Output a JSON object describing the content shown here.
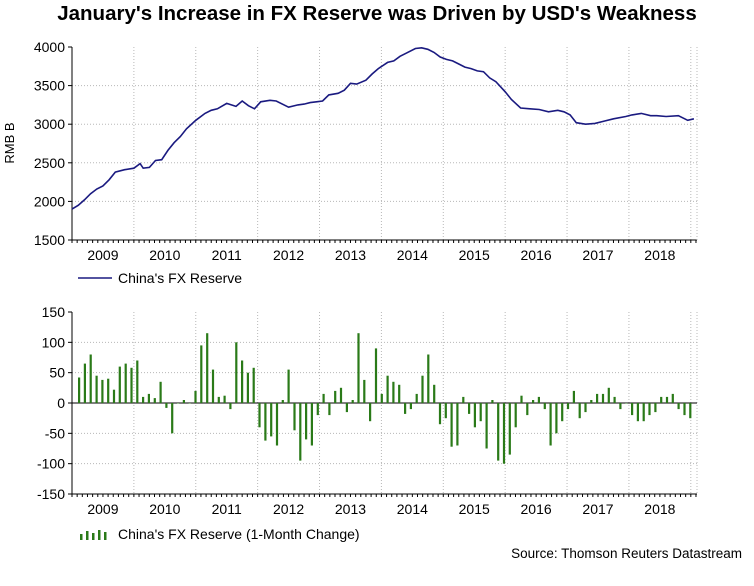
{
  "chart_data": [
    {
      "type": "line",
      "title": "January's Increase in FX Reserve was Driven by USD's Weakness",
      "ylabel": "RMB B",
      "ylim": [
        1500,
        4000
      ],
      "yticks": [
        1500,
        2000,
        2500,
        3000,
        3500,
        4000
      ],
      "xlim": [
        2008.5,
        2018.6
      ],
      "xtick_labels": [
        "2009",
        "2010",
        "2011",
        "2012",
        "2013",
        "2014",
        "2015",
        "2016",
        "2017",
        "2018"
      ],
      "grid": true,
      "legend": "China's FX Reserve",
      "color": "#1a1a80",
      "series": [
        {
          "name": "China's FX Reserve",
          "x": [
            2008.5,
            2008.6,
            2008.7,
            2008.8,
            2008.9,
            2009.0,
            2009.1,
            2009.2,
            2009.35,
            2009.5,
            2009.6,
            2009.65,
            2009.75,
            2009.85,
            2009.95,
            2010.05,
            2010.15,
            2010.25,
            2010.35,
            2010.5,
            2010.65,
            2010.75,
            2010.85,
            2011.0,
            2011.15,
            2011.25,
            2011.35,
            2011.45,
            2011.55,
            2011.7,
            2011.8,
            2012.0,
            2012.15,
            2012.25,
            2012.35,
            2012.45,
            2012.55,
            2012.65,
            2012.8,
            2012.9,
            2013.0,
            2013.1,
            2013.25,
            2013.35,
            2013.45,
            2013.6,
            2013.7,
            2013.8,
            2013.9,
            2014.05,
            2014.15,
            2014.25,
            2014.35,
            2014.45,
            2014.55,
            2014.65,
            2014.75,
            2014.85,
            2014.95,
            2015.05,
            2015.15,
            2015.25,
            2015.35,
            2015.5,
            2015.6,
            2015.75,
            2015.9,
            2016.05,
            2016.2,
            2016.35,
            2016.45,
            2016.55,
            2016.65,
            2016.8,
            2016.95,
            2017.1,
            2017.25,
            2017.45,
            2017.55,
            2017.7,
            2017.85,
            2017.95,
            2018.1,
            2018.3,
            2018.45,
            2018.55
          ],
          "values": [
            1900,
            1950,
            2020,
            2100,
            2160,
            2200,
            2280,
            2380,
            2410,
            2430,
            2490,
            2430,
            2440,
            2530,
            2540,
            2660,
            2760,
            2840,
            2940,
            3050,
            3140,
            3180,
            3200,
            3270,
            3230,
            3300,
            3240,
            3200,
            3290,
            3310,
            3300,
            3220,
            3250,
            3260,
            3280,
            3290,
            3300,
            3380,
            3400,
            3440,
            3530,
            3520,
            3570,
            3650,
            3720,
            3800,
            3820,
            3880,
            3920,
            3980,
            3990,
            3970,
            3930,
            3870,
            3840,
            3820,
            3780,
            3740,
            3720,
            3690,
            3680,
            3600,
            3550,
            3420,
            3320,
            3210,
            3200,
            3190,
            3160,
            3180,
            3160,
            3120,
            3020,
            3000,
            3010,
            3040,
            3070,
            3100,
            3120,
            3140,
            3110,
            3110,
            3100,
            3110,
            3050,
            3070
          ]
        }
      ]
    },
    {
      "type": "bar",
      "ylim": [
        -150,
        150
      ],
      "yticks": [
        -150,
        -100,
        -50,
        0,
        50,
        100,
        150
      ],
      "xlim": [
        2008.5,
        2018.6
      ],
      "xtick_labels": [
        "2009",
        "2010",
        "2011",
        "2012",
        "2013",
        "2014",
        "2015",
        "2016",
        "2017",
        "2018"
      ],
      "grid": true,
      "legend": "China's FX Reserve (1-Month Change)",
      "color": "#2a7a18",
      "series": [
        {
          "name": "China's FX Reserve (1-Month Change)",
          "values": [
            42,
            65,
            80,
            45,
            38,
            40,
            22,
            60,
            65,
            58,
            70,
            10,
            15,
            8,
            35,
            -8,
            -50,
            0,
            5,
            0,
            20,
            95,
            115,
            55,
            10,
            12,
            -10,
            100,
            70,
            50,
            58,
            -40,
            -62,
            -55,
            -70,
            5,
            55,
            -45,
            -95,
            -60,
            -70,
            -20,
            15,
            -20,
            20,
            25,
            -15,
            5,
            115,
            38,
            -30,
            90,
            15,
            45,
            35,
            30,
            -18,
            -10,
            15,
            45,
            80,
            30,
            -35,
            -25,
            -72,
            -70,
            10,
            -18,
            -40,
            -30,
            -75,
            5,
            -95,
            -100,
            -85,
            -40,
            12,
            -20,
            5,
            10,
            -10,
            -70,
            -50,
            -30,
            -10,
            20,
            -25,
            -15,
            5,
            15,
            15,
            25,
            10,
            -10,
            0,
            -20,
            -30,
            -30,
            -20,
            -15,
            10,
            10,
            15,
            -10,
            -20,
            -25
          ]
        }
      ]
    }
  ],
  "source": "Source: Thomson Reuters Datastream"
}
